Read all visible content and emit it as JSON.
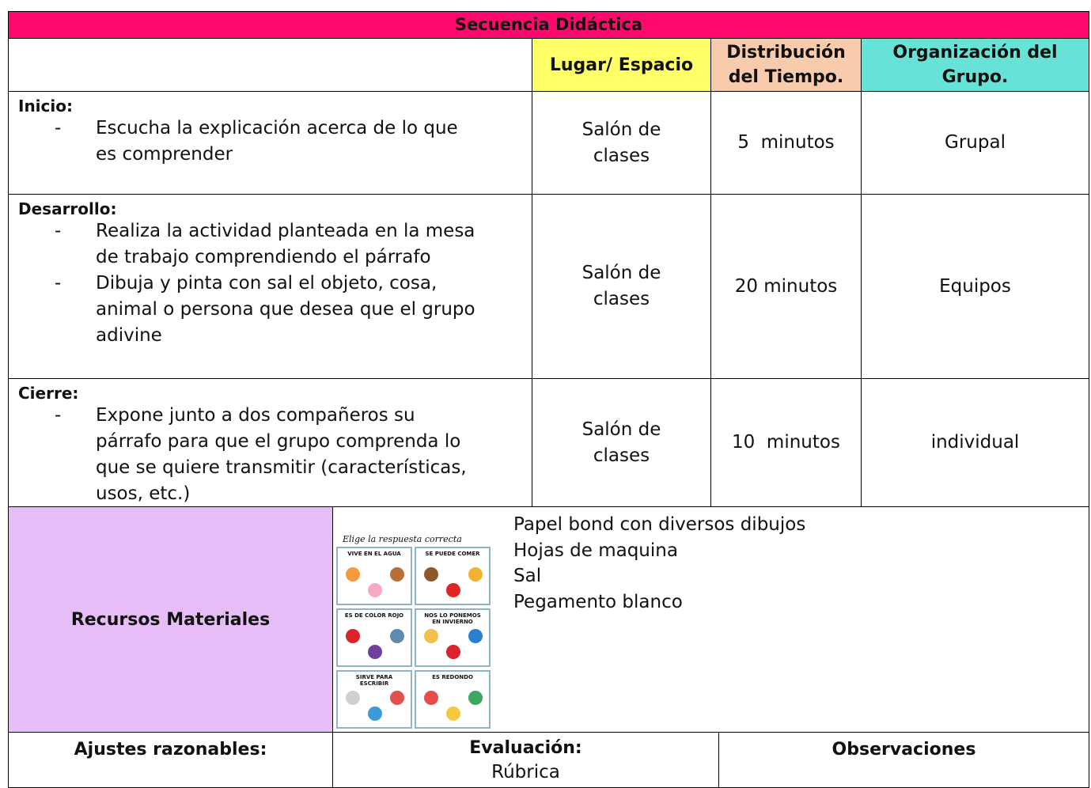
{
  "title": "Secuencia Didáctica",
  "headers": [
    "Lugar/ Espacio",
    "Distribución del Tiempo.",
    "Organización del Grupo."
  ],
  "rows": [
    {
      "phase": "Inicio:",
      "activities": [
        "Escucha la explicación acerca de lo que es comprender"
      ],
      "place": "Salón de clases",
      "time": "5  minutos",
      "group": "Grupal"
    },
    {
      "phase": "Desarrollo:",
      "activities": [
        "Realiza la actividad planteada en la mesa de trabajo comprendiendo el párrafo",
        "Dibuja y pinta con sal el objeto, cosa, animal o persona que desea que el grupo adivine"
      ],
      "place": "Salón de clases",
      "time": "20 minutos",
      "group": "Equipos"
    },
    {
      "phase": "Cierre:",
      "activities": [
        "Expone junto a dos compañeros  su párrafo para que el grupo comprenda lo que se quiere transmitir (características, usos, etc.)"
      ],
      "place": "Salón de clases",
      "time": "10  minutos",
      "group": "individual"
    }
  ],
  "resources": {
    "label": "Recursos Materiales",
    "image": {
      "title": "Elige la respuesta correcta",
      "cards": [
        "VIVE EN EL AGUA",
        "SE PUEDE COMER",
        "ES DE COLOR ROJO",
        "NOS LO PONEMOS EN INVIERNO",
        "SIRVE PARA ESCRIBIR",
        "ES REDONDO"
      ]
    },
    "items": [
      "Papel bond con diversos dibujos",
      "Hojas de maquina",
      "Sal",
      "Pegamento blanco"
    ]
  },
  "footer": {
    "adjustments": "Ajustes razonables:",
    "evaluation": {
      "label": "Evaluación:",
      "value": "Rúbrica"
    },
    "observations": "Observaciones"
  }
}
